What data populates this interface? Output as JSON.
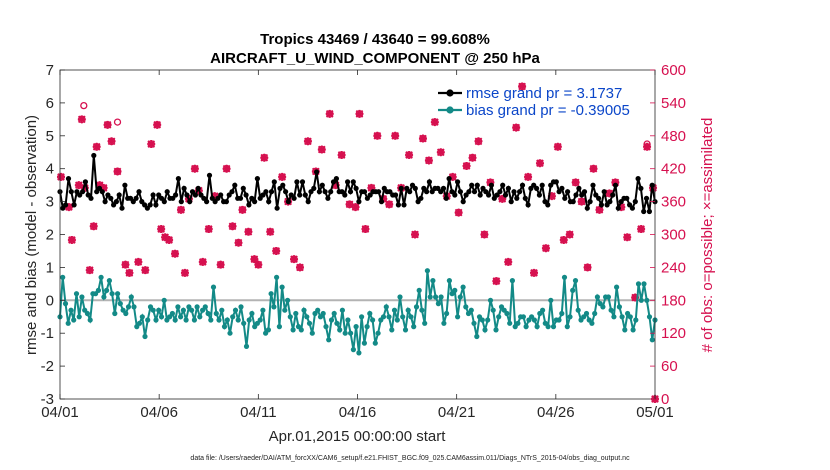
{
  "chart_data": {
    "type": "line",
    "title_line1": "Tropics 43469 / 43640 = 99.608%",
    "title_line2": "AIRCRAFT_U_WIND_COMPONENT @ 250 hPa",
    "xlabel": "Apr.01,2015 00:00:00 start",
    "ylabel_left": "rmse and bias (model - observation)",
    "ylabel_right": "# of obs: o=possible; ×=assimilated",
    "footnote": "data file: /Users/raeder/DAI/ATM_forcXX/CAM6_setup/f.e21.FHIST_BGC.f09_025.CAM6assim.011/Diags_NTrS_2015-04/obs_diag_output.nc",
    "x_ticks": [
      "04/01",
      "04/06",
      "04/11",
      "04/16",
      "04/21",
      "04/26",
      "05/01"
    ],
    "x_range": [
      0,
      30
    ],
    "ylim_left": [
      -3,
      7
    ],
    "yticks_left": [
      "-3",
      "-2",
      "-1",
      "0",
      "1",
      "2",
      "3",
      "4",
      "5",
      "6",
      "7"
    ],
    "ylim_right": [
      0,
      600
    ],
    "yticks_right": [
      "0",
      "60",
      "120",
      "180",
      "240",
      "300",
      "360",
      "420",
      "480",
      "540",
      "600"
    ],
    "legend": [
      {
        "label": "rmse grand pr = 3.1737",
        "color": "#000000"
      },
      {
        "label": "bias grand pr = -0.39005",
        "color": "#138a87"
      }
    ],
    "colors": {
      "rmse": "#000000",
      "bias": "#138a87",
      "obs": "#d6104f",
      "zero_line": "#b3b3b3"
    },
    "rmse": [
      3.3,
      2.8,
      2.9,
      3.7,
      3.3,
      2.9,
      3.3,
      3.2,
      3.3,
      3.6,
      3.2,
      3.1,
      4.4,
      3.3,
      3.4,
      3.3,
      3.0,
      3.2,
      3.1,
      2.9,
      3.0,
      3.2,
      2.8,
      3.5,
      3.1,
      3.1,
      3.0,
      3.1,
      3.3,
      3.0,
      2.9,
      2.8,
      2.9,
      3.2,
      2.9,
      3.2,
      3.1,
      3.0,
      3.3,
      3.1,
      3.1,
      3.2,
      3.7,
      3.0,
      3.4,
      3.2,
      3.0,
      3.3,
      3.2,
      3.4,
      3.2,
      3.1,
      3.0,
      3.8,
      3.1,
      3.0,
      3.1,
      3.2,
      3.0,
      3.0,
      3.2,
      3.3,
      3.5,
      3.1,
      3.1,
      3.4,
      3.2,
      2.9,
      3.1,
      3.0,
      3.7,
      3.1,
      3.2,
      3.3,
      3.0,
      3.3,
      3.6,
      2.8,
      3.4,
      3.5,
      3.3,
      3.0,
      3.2,
      3.1,
      3.6,
      3.2,
      3.6,
      3.2,
      3.0,
      3.3,
      3.4,
      3.9,
      3.3,
      3.5,
      3.3,
      3.1,
      3.3,
      3.6,
      3.7,
      3.3,
      3.3,
      3.2,
      3.6,
      3.3,
      3.6,
      3.4,
      3.0,
      3.3,
      3.3,
      3.1,
      3.2,
      3.3,
      3.3,
      3.3,
      3.0,
      3.4,
      3.3,
      3.3,
      3.2,
      3.2,
      2.9,
      3.4,
      2.9,
      3.4,
      3.3,
      3.5,
      3.4,
      3.0,
      3.1,
      3.4,
      3.3,
      3.6,
      3.3,
      3.4,
      3.4,
      3.3,
      3.4,
      3.1,
      3.7,
      3.3,
      3.2,
      3.6,
      3.3,
      3.0,
      3.2,
      3.3,
      3.5,
      3.3,
      3.5,
      3.2,
      3.4,
      3.3,
      3.2,
      3.5,
      3.1,
      3.2,
      3.3,
      3.5,
      3.2,
      3.4,
      3.0,
      3.3,
      3.1,
      3.3,
      3.5,
      3.1,
      2.9,
      3.4,
      3.5,
      3.4,
      3.2,
      3.5,
      3.0,
      2.9,
      3.5,
      3.6,
      3.6,
      3.3,
      3.4,
      3.1,
      3.3,
      3.0,
      3.0,
      3.2,
      3.4,
      3.2,
      3.3,
      2.8,
      3.0,
      3.5,
      3.2,
      3.1,
      2.9,
      3.3,
      2.9,
      3.0,
      3.2,
      3.5,
      2.8,
      3.0,
      3.1,
      3.1,
      2.9,
      2.8,
      3.0,
      3.7,
      3.4,
      2.7,
      3.1,
      2.7,
      3.5,
      3.0
    ],
    "bias": [
      -0.5,
      0.7,
      -0.1,
      -0.7,
      -0.3,
      -0.6,
      0.2,
      -0.5,
      0.1,
      -0.3,
      -0.4,
      -0.6,
      0.2,
      0.2,
      0.3,
      0.7,
      0.1,
      0.3,
      0.6,
      0.2,
      -0.4,
      0.2,
      -0.1,
      -0.3,
      -0.4,
      -0.2,
      0.1,
      -0.2,
      -0.8,
      -0.7,
      -0.5,
      -1.1,
      -0.6,
      -0.2,
      -0.3,
      -0.6,
      -0.3,
      -0.5,
      0.0,
      -0.6,
      -0.5,
      -0.4,
      -0.6,
      -0.2,
      -0.5,
      -0.3,
      -0.6,
      -0.2,
      -0.3,
      -0.6,
      -0.2,
      -0.5,
      -0.3,
      -0.2,
      -0.4,
      -0.6,
      0.4,
      -0.4,
      -0.6,
      -0.3,
      -0.8,
      -0.6,
      -1.0,
      -0.5,
      -0.3,
      -0.6,
      -0.2,
      -0.7,
      -1.4,
      -0.6,
      -0.4,
      -0.8,
      -0.7,
      -0.6,
      -0.3,
      -1.0,
      -0.9,
      0.2,
      -0.2,
      0.7,
      -0.8,
      0.4,
      -0.3,
      0.0,
      -0.5,
      -0.9,
      -0.4,
      -0.8,
      -0.9,
      -0.3,
      -0.5,
      -0.7,
      -1.0,
      -0.4,
      -0.3,
      -0.5,
      -0.4,
      -0.8,
      -1.2,
      -0.6,
      -0.4,
      -0.7,
      -0.9,
      -0.3,
      -1.0,
      -0.6,
      -1.0,
      -1.5,
      -0.8,
      -1.6,
      -0.5,
      -1.3,
      -0.8,
      -0.4,
      -0.6,
      -1.3,
      -1.0,
      -0.6,
      -0.5,
      -0.2,
      -0.5,
      -0.9,
      -0.3,
      -0.6,
      0.1,
      -0.5,
      -0.9,
      -0.3,
      -0.5,
      -0.8,
      -0.2,
      0.3,
      -0.3,
      -0.7,
      0.9,
      0.1,
      0.6,
      0.1,
      -0.1,
      0.1,
      -0.7,
      -0.4,
      0.6,
      0.2,
      0.3,
      -0.5,
      0.1,
      0.4,
      -0.2,
      -0.4,
      -0.3,
      -0.7,
      -1.1,
      -0.5,
      -0.6,
      -0.9,
      -0.6,
      0.0,
      -0.3,
      -0.9,
      -0.5,
      -0.2,
      -0.3,
      -0.4,
      -0.7,
      0.6,
      -0.8,
      -0.7,
      -0.5,
      -0.5,
      -0.8,
      -0.6,
      -0.5,
      -0.6,
      -0.8,
      -0.4,
      -0.3,
      -0.7,
      -0.8,
      0.0,
      -0.8,
      -0.6,
      -0.6,
      -0.4,
      0.7,
      -0.8,
      -0.5,
      0.3,
      0.6,
      -0.3,
      -0.6,
      -0.5,
      -0.4,
      -0.6,
      -0.7,
      -0.4,
      0.1,
      -0.1,
      -0.2,
      0.1,
      0.1,
      -0.3,
      -0.5,
      0.4,
      -0.2,
      -0.5,
      -0.9,
      -0.4,
      -0.5,
      -0.9,
      -0.6,
      0.5,
      0.0,
      0.5,
      0.0,
      -0.5,
      -1.2,
      -0.6
    ],
    "obs_assimilated": [
      [
        0.05,
        405
      ],
      [
        0.45,
        350
      ],
      [
        0.6,
        290
      ],
      [
        0.95,
        390
      ],
      [
        1.1,
        510
      ],
      [
        1.25,
        385
      ],
      [
        1.5,
        235
      ],
      [
        1.7,
        315
      ],
      [
        1.85,
        460
      ],
      [
        2.0,
        390
      ],
      [
        2.2,
        385
      ],
      [
        2.4,
        500
      ],
      [
        2.6,
        470
      ],
      [
        2.9,
        415
      ],
      [
        3.3,
        245
      ],
      [
        3.5,
        230
      ],
      [
        3.95,
        250
      ],
      [
        4.3,
        235
      ],
      [
        4.6,
        465
      ],
      [
        4.9,
        500
      ],
      [
        5.1,
        310
      ],
      [
        5.3,
        295
      ],
      [
        5.5,
        290
      ],
      [
        5.8,
        265
      ],
      [
        6.1,
        345
      ],
      [
        6.3,
        230
      ],
      [
        6.5,
        365
      ],
      [
        6.8,
        420
      ],
      [
        7.0,
        380
      ],
      [
        7.2,
        250
      ],
      [
        7.5,
        310
      ],
      [
        7.8,
        370
      ],
      [
        8.1,
        245
      ],
      [
        8.4,
        420
      ],
      [
        8.7,
        315
      ],
      [
        9.0,
        285
      ],
      [
        9.2,
        345
      ],
      [
        9.5,
        305
      ],
      [
        9.8,
        255
      ],
      [
        10.0,
        245
      ],
      [
        10.3,
        440
      ],
      [
        10.6,
        305
      ],
      [
        10.9,
        270
      ],
      [
        11.2,
        405
      ],
      [
        11.5,
        360
      ],
      [
        11.8,
        255
      ],
      [
        12.1,
        240
      ],
      [
        12.5,
        470
      ],
      [
        12.9,
        415
      ],
      [
        13.2,
        455
      ],
      [
        13.6,
        520
      ],
      [
        13.9,
        390
      ],
      [
        14.2,
        445
      ],
      [
        14.6,
        355
      ],
      [
        14.9,
        350
      ],
      [
        15.1,
        520
      ],
      [
        15.4,
        310
      ],
      [
        15.7,
        385
      ],
      [
        16.0,
        480
      ],
      [
        16.3,
        365
      ],
      [
        16.6,
        355
      ],
      [
        16.9,
        480
      ],
      [
        17.2,
        385
      ],
      [
        17.6,
        445
      ],
      [
        17.9,
        300
      ],
      [
        18.3,
        475
      ],
      [
        18.6,
        435
      ],
      [
        18.9,
        505
      ],
      [
        19.2,
        450
      ],
      [
        19.5,
        370
      ],
      [
        19.8,
        405
      ],
      [
        20.1,
        340
      ],
      [
        20.5,
        425
      ],
      [
        20.8,
        440
      ],
      [
        21.1,
        470
      ],
      [
        21.4,
        300
      ],
      [
        21.7,
        395
      ],
      [
        22.0,
        215
      ],
      [
        22.3,
        365
      ],
      [
        22.6,
        250
      ],
      [
        23.0,
        495
      ],
      [
        23.3,
        570
      ],
      [
        23.6,
        405
      ],
      [
        23.9,
        230
      ],
      [
        24.2,
        430
      ],
      [
        24.5,
        275
      ],
      [
        24.8,
        370
      ],
      [
        25.1,
        460
      ],
      [
        25.4,
        290
      ],
      [
        25.7,
        300
      ],
      [
        26.0,
        395
      ],
      [
        26.3,
        360
      ],
      [
        26.6,
        240
      ],
      [
        26.9,
        420
      ],
      [
        27.2,
        345
      ],
      [
        27.7,
        375
      ],
      [
        28.0,
        395
      ],
      [
        28.3,
        350
      ],
      [
        28.6,
        295
      ],
      [
        29.0,
        185
      ],
      [
        29.3,
        310
      ],
      [
        29.6,
        460
      ],
      [
        29.9,
        385
      ],
      [
        30.0,
        0
      ]
    ],
    "obs_possible_only": [
      [
        1.2,
        535
      ],
      [
        2.9,
        505
      ],
      [
        29.6,
        465
      ]
    ]
  }
}
